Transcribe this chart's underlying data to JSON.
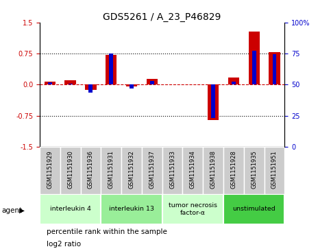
{
  "title": "GDS5261 / A_23_P46829",
  "samples": [
    "GSM1151929",
    "GSM1151930",
    "GSM1151936",
    "GSM1151931",
    "GSM1151932",
    "GSM1151937",
    "GSM1151933",
    "GSM1151934",
    "GSM1151938",
    "GSM1151928",
    "GSM1151935",
    "GSM1151951"
  ],
  "log2_ratio": [
    0.08,
    0.1,
    -0.12,
    0.72,
    -0.05,
    0.14,
    0.0,
    0.0,
    -0.86,
    0.18,
    1.28,
    0.78
  ],
  "percentile_scaled": [
    0.055,
    0.03,
    -0.19,
    0.75,
    -0.09,
    0.09,
    0.0,
    0.0,
    -0.8,
    0.08,
    0.82,
    0.73
  ],
  "groups": [
    {
      "label": "interleukin 4",
      "start": 0,
      "end": 3,
      "color": "#ccffcc"
    },
    {
      "label": "interleukin 13",
      "start": 3,
      "end": 6,
      "color": "#99ee99"
    },
    {
      "label": "tumor necrosis\nfactor-α",
      "start": 6,
      "end": 9,
      "color": "#ccffcc"
    },
    {
      "label": "unstimulated",
      "start": 9,
      "end": 12,
      "color": "#44cc44"
    }
  ],
  "ylim": [
    -1.5,
    1.5
  ],
  "yticks_left": [
    -1.5,
    -0.75,
    0.0,
    0.75,
    1.5
  ],
  "yticks_right_vals": [
    0,
    25,
    50,
    75,
    100
  ],
  "yticks_right_labels": [
    "0",
    "25",
    "50",
    "75",
    "100%"
  ],
  "right_ylim": [
    0,
    100
  ],
  "log2_color": "#cc0000",
  "percentile_color": "#0000cc",
  "zero_line_color": "#cc0000",
  "dotted_line_color": "#000000",
  "bg_color": "#ffffff",
  "title_fontsize": 10,
  "tick_fontsize": 7,
  "legend_fontsize": 7.5,
  "sample_box_color": "#cccccc",
  "sample_text_color": "#000000",
  "agent_label": "agent",
  "agent_arrow": "▶",
  "legend_items": [
    {
      "color": "#cc0000",
      "label": "log2 ratio"
    },
    {
      "color": "#0000cc",
      "label": "percentile rank within the sample"
    }
  ]
}
